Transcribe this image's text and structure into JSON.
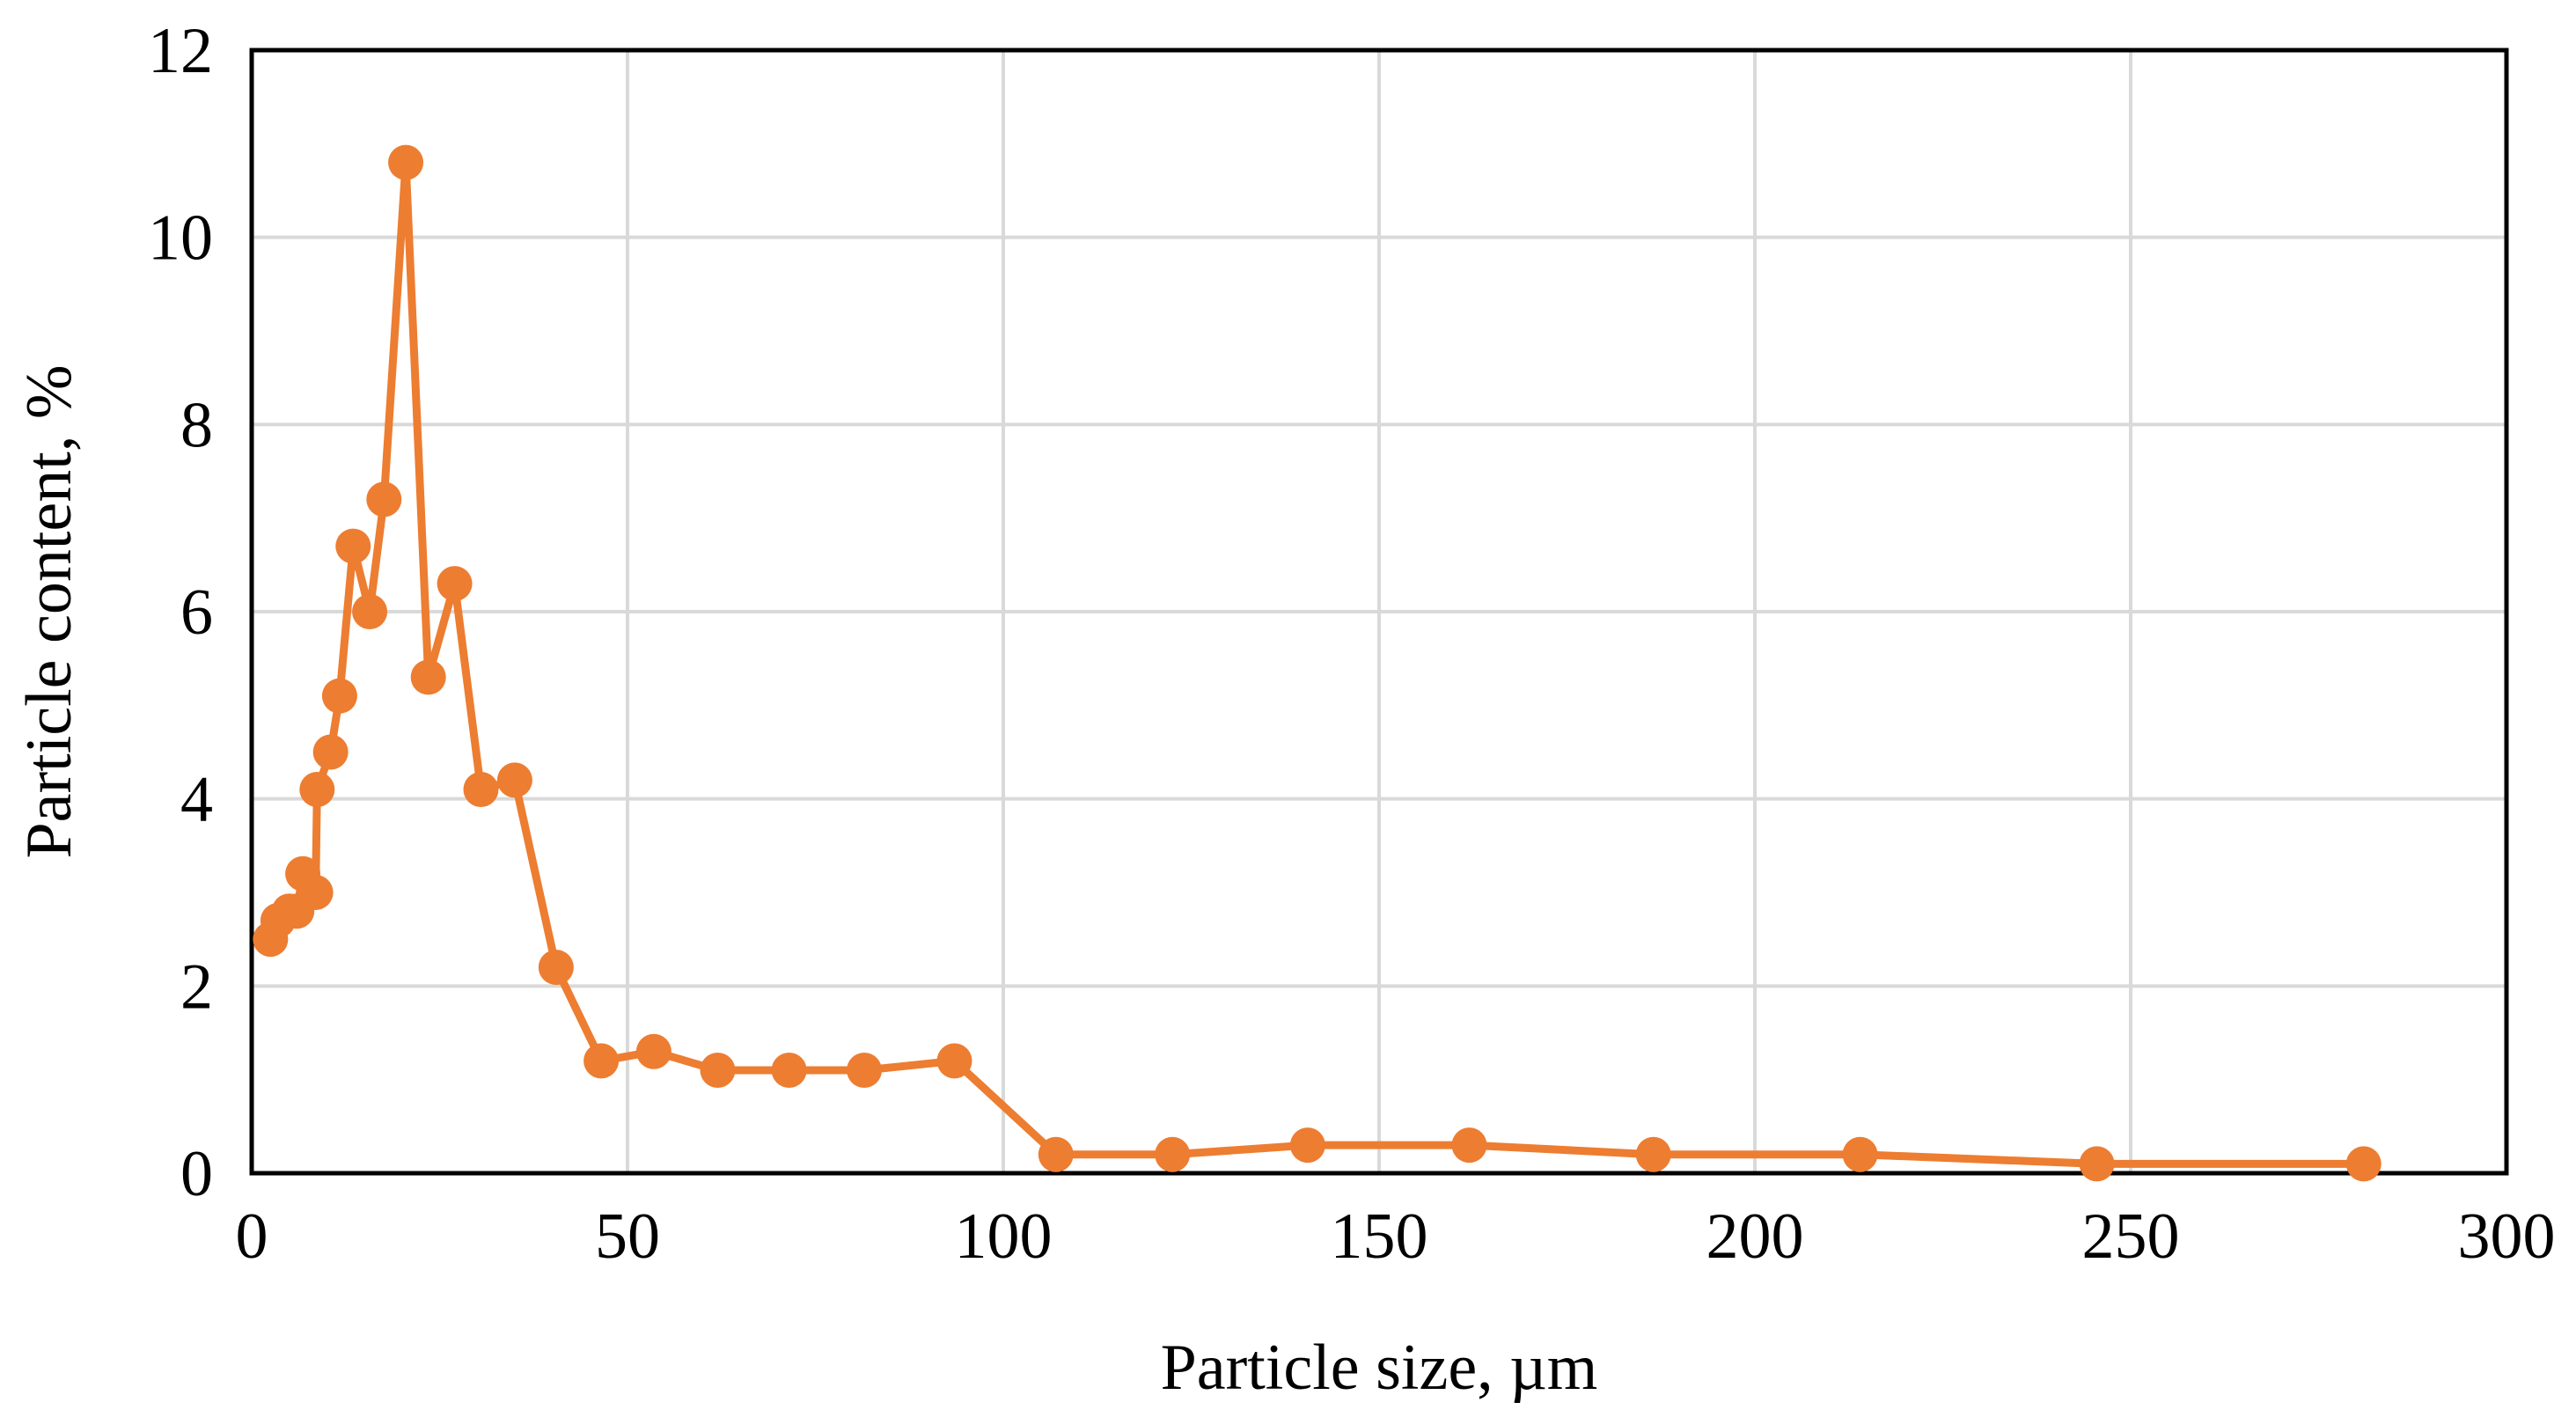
{
  "chart_data": {
    "type": "line",
    "title": "",
    "xlabel": "Particle size, µm",
    "ylabel": "Particle content, %",
    "xlim": [
      0,
      300
    ],
    "ylim": [
      0,
      12
    ],
    "x_ticks": [
      0,
      50,
      100,
      150,
      200,
      250,
      300
    ],
    "y_ticks": [
      0,
      2,
      4,
      6,
      8,
      10,
      12
    ],
    "x_tick_labels": [
      "0",
      "50",
      "100",
      "150",
      "200",
      "250",
      "300"
    ],
    "y_tick_labels": [
      "0",
      "2",
      "4",
      "6",
      "8",
      "10",
      "12"
    ],
    "grid": true,
    "legend": "none",
    "series_color": "#ED7D31",
    "series": [
      {
        "x": [
          2.5,
          3.5,
          5.0,
          6.0,
          6.8,
          8.5,
          8.7,
          10.5,
          11.7,
          13.5,
          15.7,
          17.6,
          20.5,
          23.5,
          27.0,
          30.5,
          35.0,
          40.5,
          46.5,
          53.5,
          62.0,
          71.5,
          81.5,
          93.5,
          107.0,
          122.5,
          140.5,
          162.0,
          186.5,
          214.0,
          245.5,
          281.0
        ],
        "y": [
          2.5,
          2.7,
          2.8,
          2.8,
          3.2,
          3.0,
          4.1,
          4.5,
          5.1,
          6.7,
          6.0,
          7.2,
          10.8,
          5.3,
          6.3,
          4.1,
          4.2,
          2.2,
          1.2,
          1.3,
          1.1,
          1.1,
          1.1,
          1.2,
          0.2,
          0.2,
          0.3,
          0.3,
          0.2,
          0.2,
          0.1,
          0.1
        ]
      }
    ]
  }
}
